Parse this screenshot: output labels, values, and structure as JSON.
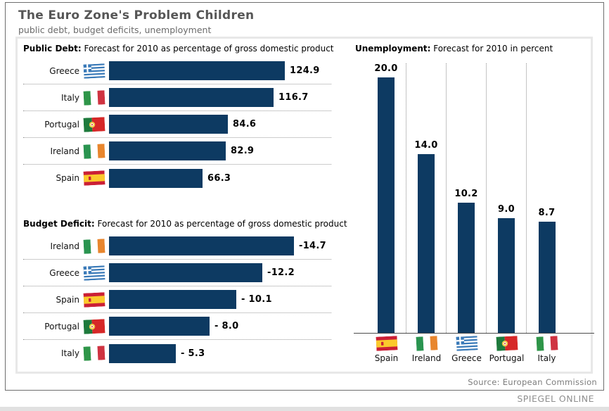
{
  "title": "The Euro Zone's Problem Children",
  "subtitle": "public debt, budget deficits, unemployment",
  "source": "Source: European Commission",
  "credit": "SPIEGEL ONLINE",
  "colors": {
    "bar": "#0d3a62",
    "grid_dotted": "#8a8a8a",
    "axis": "#4d4d4d"
  },
  "chart_data": [
    {
      "id": "public_debt",
      "type": "bar",
      "orientation": "horizontal",
      "title_bold": "Public Debt:",
      "title_rest": " Forecast for 2010 as percentage of gross domestic product",
      "categories": [
        "Greece",
        "Italy",
        "Portugal",
        "Ireland",
        "Spain"
      ],
      "flags": [
        "greece",
        "italy",
        "portugal",
        "ireland",
        "spain"
      ],
      "values": [
        124.9,
        116.7,
        84.6,
        82.9,
        66.3
      ],
      "value_labels": [
        "124.9",
        "116.7",
        "84.6",
        "82.9",
        "66.3"
      ],
      "xlim": [
        0,
        130
      ],
      "grid": "dotted row separators",
      "unit": "% of GDP"
    },
    {
      "id": "budget_deficit",
      "type": "bar",
      "orientation": "horizontal",
      "title_bold": "Budget Deficit:",
      "title_rest": " Forecast for 2010 as percentage of gross domestic product",
      "categories": [
        "Ireland",
        "Greece",
        "Spain",
        "Portugal",
        "Italy"
      ],
      "flags": [
        "ireland",
        "greece",
        "spain",
        "portugal",
        "italy"
      ],
      "values": [
        -14.7,
        -12.2,
        -10.1,
        -8.0,
        -5.3
      ],
      "value_labels": [
        "-14.7",
        "-12.2",
        "- 10.1",
        "- 8.0",
        "- 5.3"
      ],
      "xlim": [
        0,
        15
      ],
      "grid": "dotted row separators",
      "unit": "% of GDP"
    },
    {
      "id": "unemployment",
      "type": "bar",
      "orientation": "vertical",
      "title_bold": "Unemployment:",
      "title_rest": " Forecast for 2010 in percent",
      "categories": [
        "Spain",
        "Ireland",
        "Greece",
        "Portugal",
        "Italy"
      ],
      "flags": [
        "spain",
        "ireland",
        "greece",
        "portugal",
        "italy"
      ],
      "values": [
        20.0,
        14.0,
        10.2,
        9.0,
        8.7
      ],
      "value_labels": [
        "20.0",
        "14.0",
        "10.2",
        "9.0",
        "8.7"
      ],
      "ylim": [
        0,
        21
      ],
      "grid": "dotted column separators",
      "unit": "percent"
    }
  ]
}
